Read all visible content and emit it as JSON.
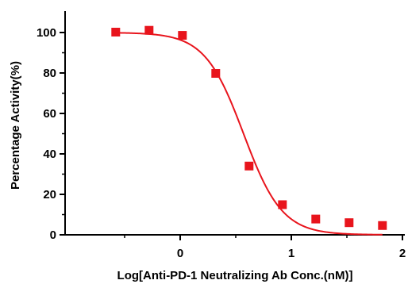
{
  "chart_data": {
    "type": "scatter",
    "xlabel": "Log[Anti-PD-1 Neutralizing Ab Conc.(nM)]",
    "ylabel": "Percentage Activity(%)",
    "xlim": [
      -1.0,
      2.0
    ],
    "ylim": [
      0,
      110
    ],
    "x_ticks": [
      0,
      1,
      2
    ],
    "x_tick_labels": [
      "0",
      "1",
      "2"
    ],
    "y_ticks": [
      0,
      20,
      40,
      60,
      80,
      100
    ],
    "y_tick_labels": [
      "0",
      "20",
      "40",
      "60",
      "80",
      "100"
    ],
    "grid": false,
    "legend": "none",
    "series": [
      {
        "kind": "points",
        "marker": "square",
        "color": "#e8141c",
        "points": [
          {
            "x": -0.58,
            "y": 100.2
          },
          {
            "x": -0.28,
            "y": 101.1
          },
          {
            "x": 0.02,
            "y": 98.6
          },
          {
            "x": 0.32,
            "y": 79.8
          },
          {
            "x": 0.62,
            "y": 34.0
          },
          {
            "x": 0.92,
            "y": 14.9
          },
          {
            "x": 1.22,
            "y": 7.8
          },
          {
            "x": 1.52,
            "y": 6.0
          },
          {
            "x": 1.82,
            "y": 4.6
          }
        ]
      },
      {
        "kind": "fit-curve",
        "model": "four-parameter logistic",
        "color": "#e8141c",
        "top": 100,
        "bottom": 0,
        "log_ic50": 0.57,
        "hill_slope": -2.5,
        "x_range": [
          -0.58,
          1.82
        ]
      }
    ]
  }
}
